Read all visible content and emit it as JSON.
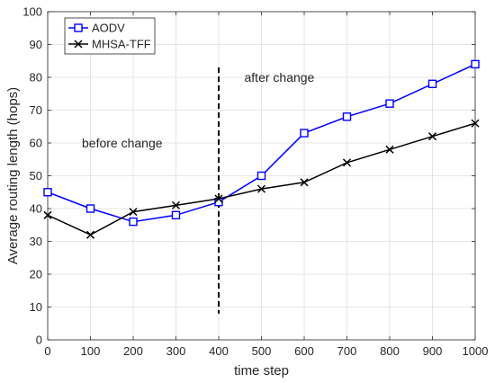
{
  "chart_data": {
    "type": "line",
    "xlabel": "time step",
    "ylabel": "Average routing length (hops)",
    "xlim": [
      0,
      1000
    ],
    "ylim": [
      0,
      100
    ],
    "x_ticks": [
      "0",
      "100",
      "200",
      "300",
      "400",
      "500",
      "600",
      "700",
      "800",
      "900",
      "1000"
    ],
    "y_ticks": [
      "0",
      "10",
      "20",
      "30",
      "40",
      "50",
      "60",
      "70",
      "80",
      "90",
      "100"
    ],
    "grid": true,
    "legend_position": "top-left",
    "x": [
      0,
      100,
      200,
      300,
      400,
      500,
      600,
      700,
      800,
      900,
      1000
    ],
    "series": [
      {
        "name": "AODV",
        "color": "#0000ff",
        "marker": "square",
        "values": [
          45,
          40,
          36,
          38,
          42,
          50,
          63,
          68,
          72,
          78,
          84
        ]
      },
      {
        "name": "MHSA-TFF",
        "color": "#000000",
        "marker": "x",
        "values": [
          38,
          32,
          39,
          41,
          43,
          46,
          48,
          54,
          58,
          62,
          66
        ]
      }
    ],
    "vline": {
      "x": 400,
      "y_from": 8,
      "y_to": 83,
      "style": "dashed"
    },
    "annotations": [
      {
        "text": "before change",
        "x": 80,
        "y": 60
      },
      {
        "text": "after change",
        "x": 460,
        "y": 80
      }
    ]
  }
}
